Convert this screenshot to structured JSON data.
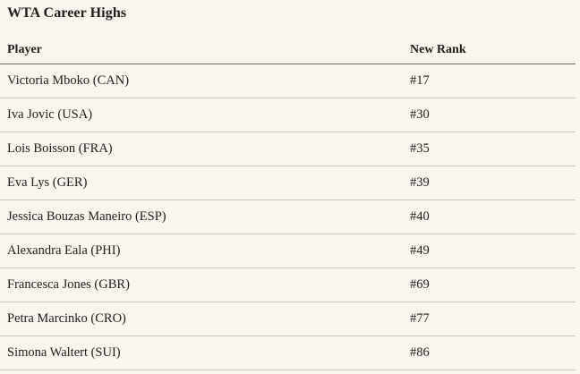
{
  "title": "WTA Career Highs",
  "table": {
    "headers": [
      "Player",
      "New Rank"
    ],
    "rows": [
      [
        "Victoria Mboko (CAN)",
        "#17"
      ],
      [
        "Iva Jovic (USA)",
        "#30"
      ],
      [
        "Lois Boisson (FRA)",
        "#35"
      ],
      [
        "Eva Lys (GER)",
        "#39"
      ],
      [
        "Jessica Bouzas Maneiro (ESP)",
        "#40"
      ],
      [
        "Alexandra Eala (PHI)",
        "#49"
      ],
      [
        "Francesca Jones (GBR)",
        "#69"
      ],
      [
        "Petra Marcinko (CRO)",
        "#77"
      ],
      [
        "Simona Waltert (SUI)",
        "#86"
      ]
    ]
  },
  "colors": {
    "background": "#f9f6ef",
    "text": "#211e1a",
    "header_rule": "#6b6a64",
    "row_rule": "#c9c6bd"
  },
  "chart_data": {
    "type": "table",
    "title": "WTA Career Highs",
    "columns": [
      "Player",
      "New Rank"
    ],
    "rows": [
      {
        "player": "Victoria Mboko (CAN)",
        "new_rank": 17
      },
      {
        "player": "Iva Jovic (USA)",
        "new_rank": 30
      },
      {
        "player": "Lois Boisson (FRA)",
        "new_rank": 35
      },
      {
        "player": "Eva Lys (GER)",
        "new_rank": 39
      },
      {
        "player": "Jessica Bouzas Maneiro (ESP)",
        "new_rank": 40
      },
      {
        "player": "Alexandra Eala (PHI)",
        "new_rank": 49
      },
      {
        "player": "Francesca Jones (GBR)",
        "new_rank": 69
      },
      {
        "player": "Petra Marcinko (CRO)",
        "new_rank": 77
      },
      {
        "player": "Simona Waltert (SUI)",
        "new_rank": 86
      }
    ]
  }
}
